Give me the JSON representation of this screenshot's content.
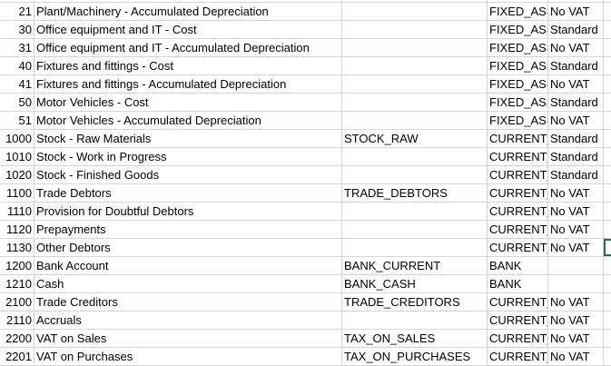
{
  "sheet": {
    "selected_row": 13,
    "selection_color": "#217346",
    "rows": [
      {
        "code": "",
        "name": "",
        "mapping": "",
        "type": "",
        "vat": ""
      },
      {
        "code": "21",
        "name": "Plant/Machinery - Accumulated Depreciation",
        "mapping": "",
        "type": "FIXED_ASS",
        "vat": "No VAT"
      },
      {
        "code": "30",
        "name": "Office equipment and IT - Cost",
        "mapping": "",
        "type": "FIXED_ASS",
        "vat": "Standard"
      },
      {
        "code": "31",
        "name": "Office equipment and IT - Accumulated Depreciation",
        "mapping": "",
        "type": "FIXED_ASS",
        "vat": "No VAT"
      },
      {
        "code": "40",
        "name": "Fixtures and fittings - Cost",
        "mapping": "",
        "type": "FIXED_ASS",
        "vat": "Standard"
      },
      {
        "code": "41",
        "name": "Fixtures and fittings - Accumulated Depreciation",
        "mapping": "",
        "type": "FIXED_ASS",
        "vat": "No VAT"
      },
      {
        "code": "50",
        "name": "Motor Vehicles - Cost",
        "mapping": "",
        "type": "FIXED_ASS",
        "vat": "Standard"
      },
      {
        "code": "51",
        "name": "Motor Vehicles - Accumulated Depreciation",
        "mapping": "",
        "type": "FIXED_ASS",
        "vat": "No VAT"
      },
      {
        "code": "1000",
        "name": "Stock - Raw Materials",
        "mapping": "STOCK_RAW",
        "type": "CURRENT_",
        "vat": "Standard"
      },
      {
        "code": "1010",
        "name": "Stock - Work in Progress",
        "mapping": "",
        "type": "CURRENT_",
        "vat": "Standard"
      },
      {
        "code": "1020",
        "name": "Stock - Finished Goods",
        "mapping": "",
        "type": "CURRENT_",
        "vat": "Standard"
      },
      {
        "code": "1100",
        "name": "Trade Debtors",
        "mapping": "TRADE_DEBTORS",
        "type": "CURRENT_",
        "vat": "No VAT"
      },
      {
        "code": "1110",
        "name": "Provision for Doubtful Debtors",
        "mapping": "",
        "type": "CURRENT_",
        "vat": "No VAT"
      },
      {
        "code": "1120",
        "name": "Prepayments",
        "mapping": "",
        "type": "CURRENT_",
        "vat": "No VAT"
      },
      {
        "code": "1130",
        "name": "Other Debtors",
        "mapping": "",
        "type": "CURRENT_",
        "vat": "No VAT"
      },
      {
        "code": "1200",
        "name": "Bank Account",
        "mapping": "BANK_CURRENT",
        "type": "BANK",
        "vat": ""
      },
      {
        "code": "1210",
        "name": "Cash",
        "mapping": "BANK_CASH",
        "type": "BANK",
        "vat": ""
      },
      {
        "code": "2100",
        "name": "Trade Creditors",
        "mapping": "TRADE_CREDITORS",
        "type": "CURRENT_",
        "vat": "No VAT"
      },
      {
        "code": "2110",
        "name": "Accruals",
        "mapping": "",
        "type": "CURRENT_",
        "vat": "No VAT"
      },
      {
        "code": "2200",
        "name": "VAT on Sales",
        "mapping": "TAX_ON_SALES",
        "type": "CURRENT_",
        "vat": "No VAT"
      },
      {
        "code": "2201",
        "name": "VAT on Purchases",
        "mapping": "TAX_ON_PURCHASES",
        "type": "CURRENT_",
        "vat": "No VAT"
      }
    ]
  }
}
